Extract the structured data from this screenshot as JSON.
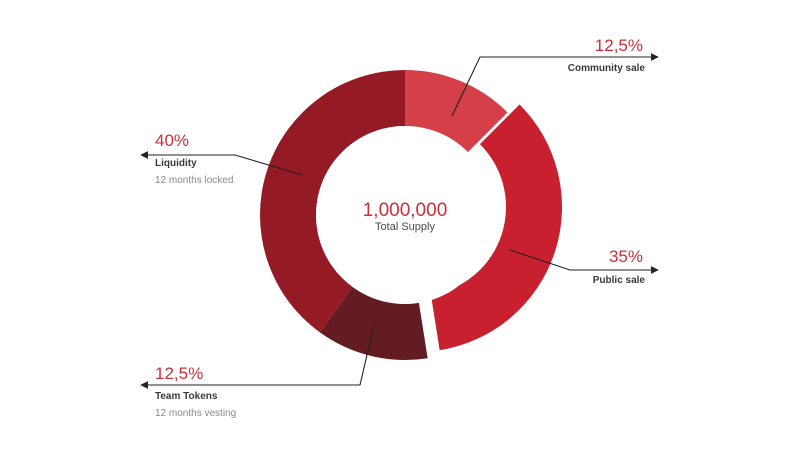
{
  "chart_data": {
    "type": "pie",
    "center": {
      "value": "1,000,000",
      "label": "Total Supply"
    },
    "slices": [
      {
        "name": "Community sale",
        "value": 12.5,
        "label": "12,5%",
        "note": "",
        "color": "#d43f48",
        "explode": false
      },
      {
        "name": "Public sale",
        "value": 35,
        "label": "35%",
        "note": "",
        "color": "#c8202f",
        "explode": true
      },
      {
        "name": "Team Tokens",
        "value": 12.5,
        "label": "12,5%",
        "note": "12 months vesting",
        "color": "#621c22",
        "explode": false
      },
      {
        "name": "Liquidity",
        "value": 40,
        "label": "40%",
        "note": "12 months locked",
        "color": "#941b25",
        "explode": false
      }
    ]
  },
  "theme": {
    "accent": "#c8303a",
    "text": "#3a3a3a",
    "muted": "#8a8a8a",
    "line": "#222222"
  }
}
